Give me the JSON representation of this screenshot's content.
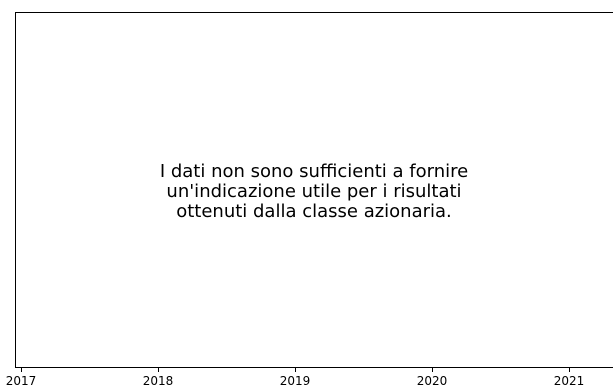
{
  "chart_data": {
    "type": "line",
    "title": "",
    "xlabel": "",
    "ylabel": "",
    "x_ticks": [
      "2017",
      "2018",
      "2019",
      "2020",
      "2021"
    ],
    "series": [],
    "message": "I dati non sono sufficienti a fornire\nun'indicazione utile per i risultati\nottenuti dalla classe azionaria.",
    "grid": false
  }
}
